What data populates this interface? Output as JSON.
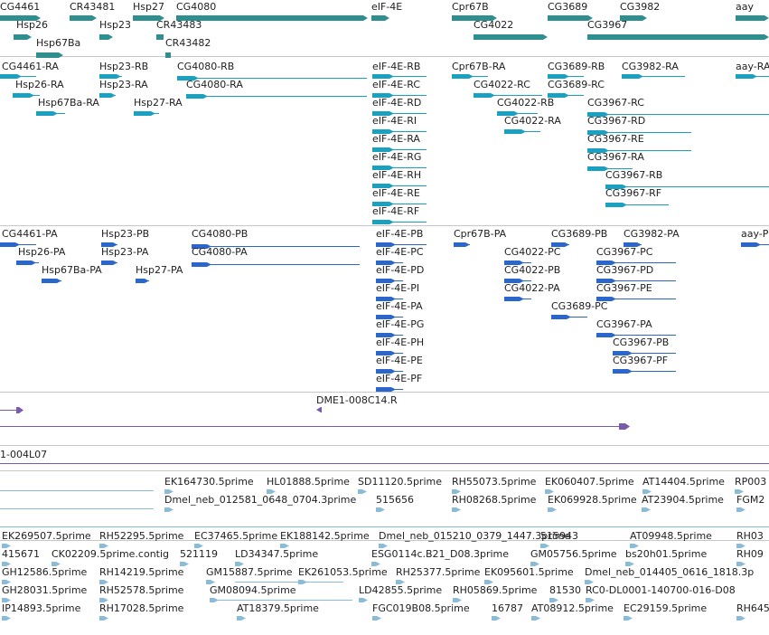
{
  "colors": {
    "gene": "#2f8f8f",
    "transcript": "#1aa0c0",
    "protein": "#2a66cc",
    "clone": "#7a5aaa",
    "est": "#8abcd8",
    "divider": "#c8c8c8"
  },
  "tracks": {
    "genes": {
      "labels": [
        "CG4461",
        "Hsp26",
        "Hsp67Ba",
        "CR43481",
        "Hsp23",
        "Hsp27",
        "CR43483",
        "CR43482",
        "CG4080",
        "eIF-4E",
        "Cpr67B",
        "CG4022",
        "CG3689",
        "CG3967",
        "CG3982",
        "aay"
      ]
    },
    "transcripts": {
      "labels": [
        "CG4461-RA",
        "Hsp26-RA",
        "Hsp67Ba-RA",
        "Hsp23-RB",
        "Hsp23-RA",
        "Hsp27-RA",
        "CG4080-RB",
        "CG4080-RA",
        "eIF-4E-RB",
        "eIF-4E-RC",
        "eIF-4E-RD",
        "eIF-4E-RI",
        "eIF-4E-RA",
        "eIF-4E-RG",
        "eIF-4E-RH",
        "eIF-4E-RE",
        "eIF-4E-RF",
        "Cpr67B-RA",
        "CG4022-RC",
        "CG4022-RB",
        "CG4022-RA",
        "CG3689-RB",
        "CG3689-RC",
        "CG3982-RA",
        "aay-RA",
        "CG3967-RC",
        "CG3967-RD",
        "CG3967-RE",
        "CG3967-RA",
        "CG3967-RB",
        "CG3967-RF"
      ]
    },
    "proteins": {
      "labels": [
        "CG4461-PA",
        "Hsp26-PA",
        "Hsp67Ba-PA",
        "Hsp23-PB",
        "Hsp23-PA",
        "Hsp27-PA",
        "CG4080-PB",
        "CG4080-PA",
        "eIF-4E-PB",
        "eIF-4E-PC",
        "eIF-4E-PD",
        "eIF-4E-PI",
        "eIF-4E-PA",
        "eIF-4E-PG",
        "eIF-4E-PH",
        "eIF-4E-PE",
        "eIF-4E-PF",
        "Cpr67B-PA",
        "CG4022-PC",
        "CG4022-PB",
        "CG4022-PA",
        "CG3689-PB",
        "CG3689-PC",
        "CG3982-PA",
        "aay-P",
        "CG3967-PC",
        "CG3967-PD",
        "CG3967-PE",
        "CG3967-PA",
        "CG3967-PB",
        "CG3967-PF"
      ]
    },
    "clones": {
      "labels": [
        "DME1-008C14.R",
        "1-004L07"
      ]
    },
    "ests": {
      "labels": [
        "EK164730.5prime",
        "HL01888.5prime",
        "SD11120.5prime",
        "RH55073.5prime",
        "EK060407.5prime",
        "AT14404.5prime",
        "RP003",
        "Dmel_neb_012581_0648_0704.3prime",
        "515656",
        "RH08268.5prime",
        "EK069928.5prime",
        "AT23904.5prime",
        "FGM2",
        "EK269507.5prime",
        "RH52295.5prime",
        "EC37465.5prime",
        "EK188142.5prime",
        "Dmel_neb_015210_0379_1447.3prime",
        "515943",
        "AT09948.5prime",
        "RH03",
        "415671",
        "CK02209.5prime.contig",
        "521119",
        "LD34347.5prime",
        "ESG0114c.B21_D08.3prime",
        "GM05756.5prime",
        "bs20h01.5prime",
        "RH09",
        "GH12586.5prime",
        "RH14219.5prime",
        "GM15887.5prime",
        "EK261053.5prime",
        "RH25377.5prime",
        "EK095601.5prime",
        "Dmel_neb_014405_0616_1818.3p",
        "GH28031.5prime",
        "RH52578.5prime",
        "GM08094.5prime",
        "LD42855.5prime",
        "RH05869.5prime",
        "81530",
        "RC0-DL0001-140700-016-D08",
        "IP14893.5prime",
        "RH17028.5prime",
        "AT18379.5prime",
        "FGC019B08.5prime",
        "16787",
        "AT08912.5prime",
        "EC29159.5prime",
        "RH645"
      ]
    }
  }
}
